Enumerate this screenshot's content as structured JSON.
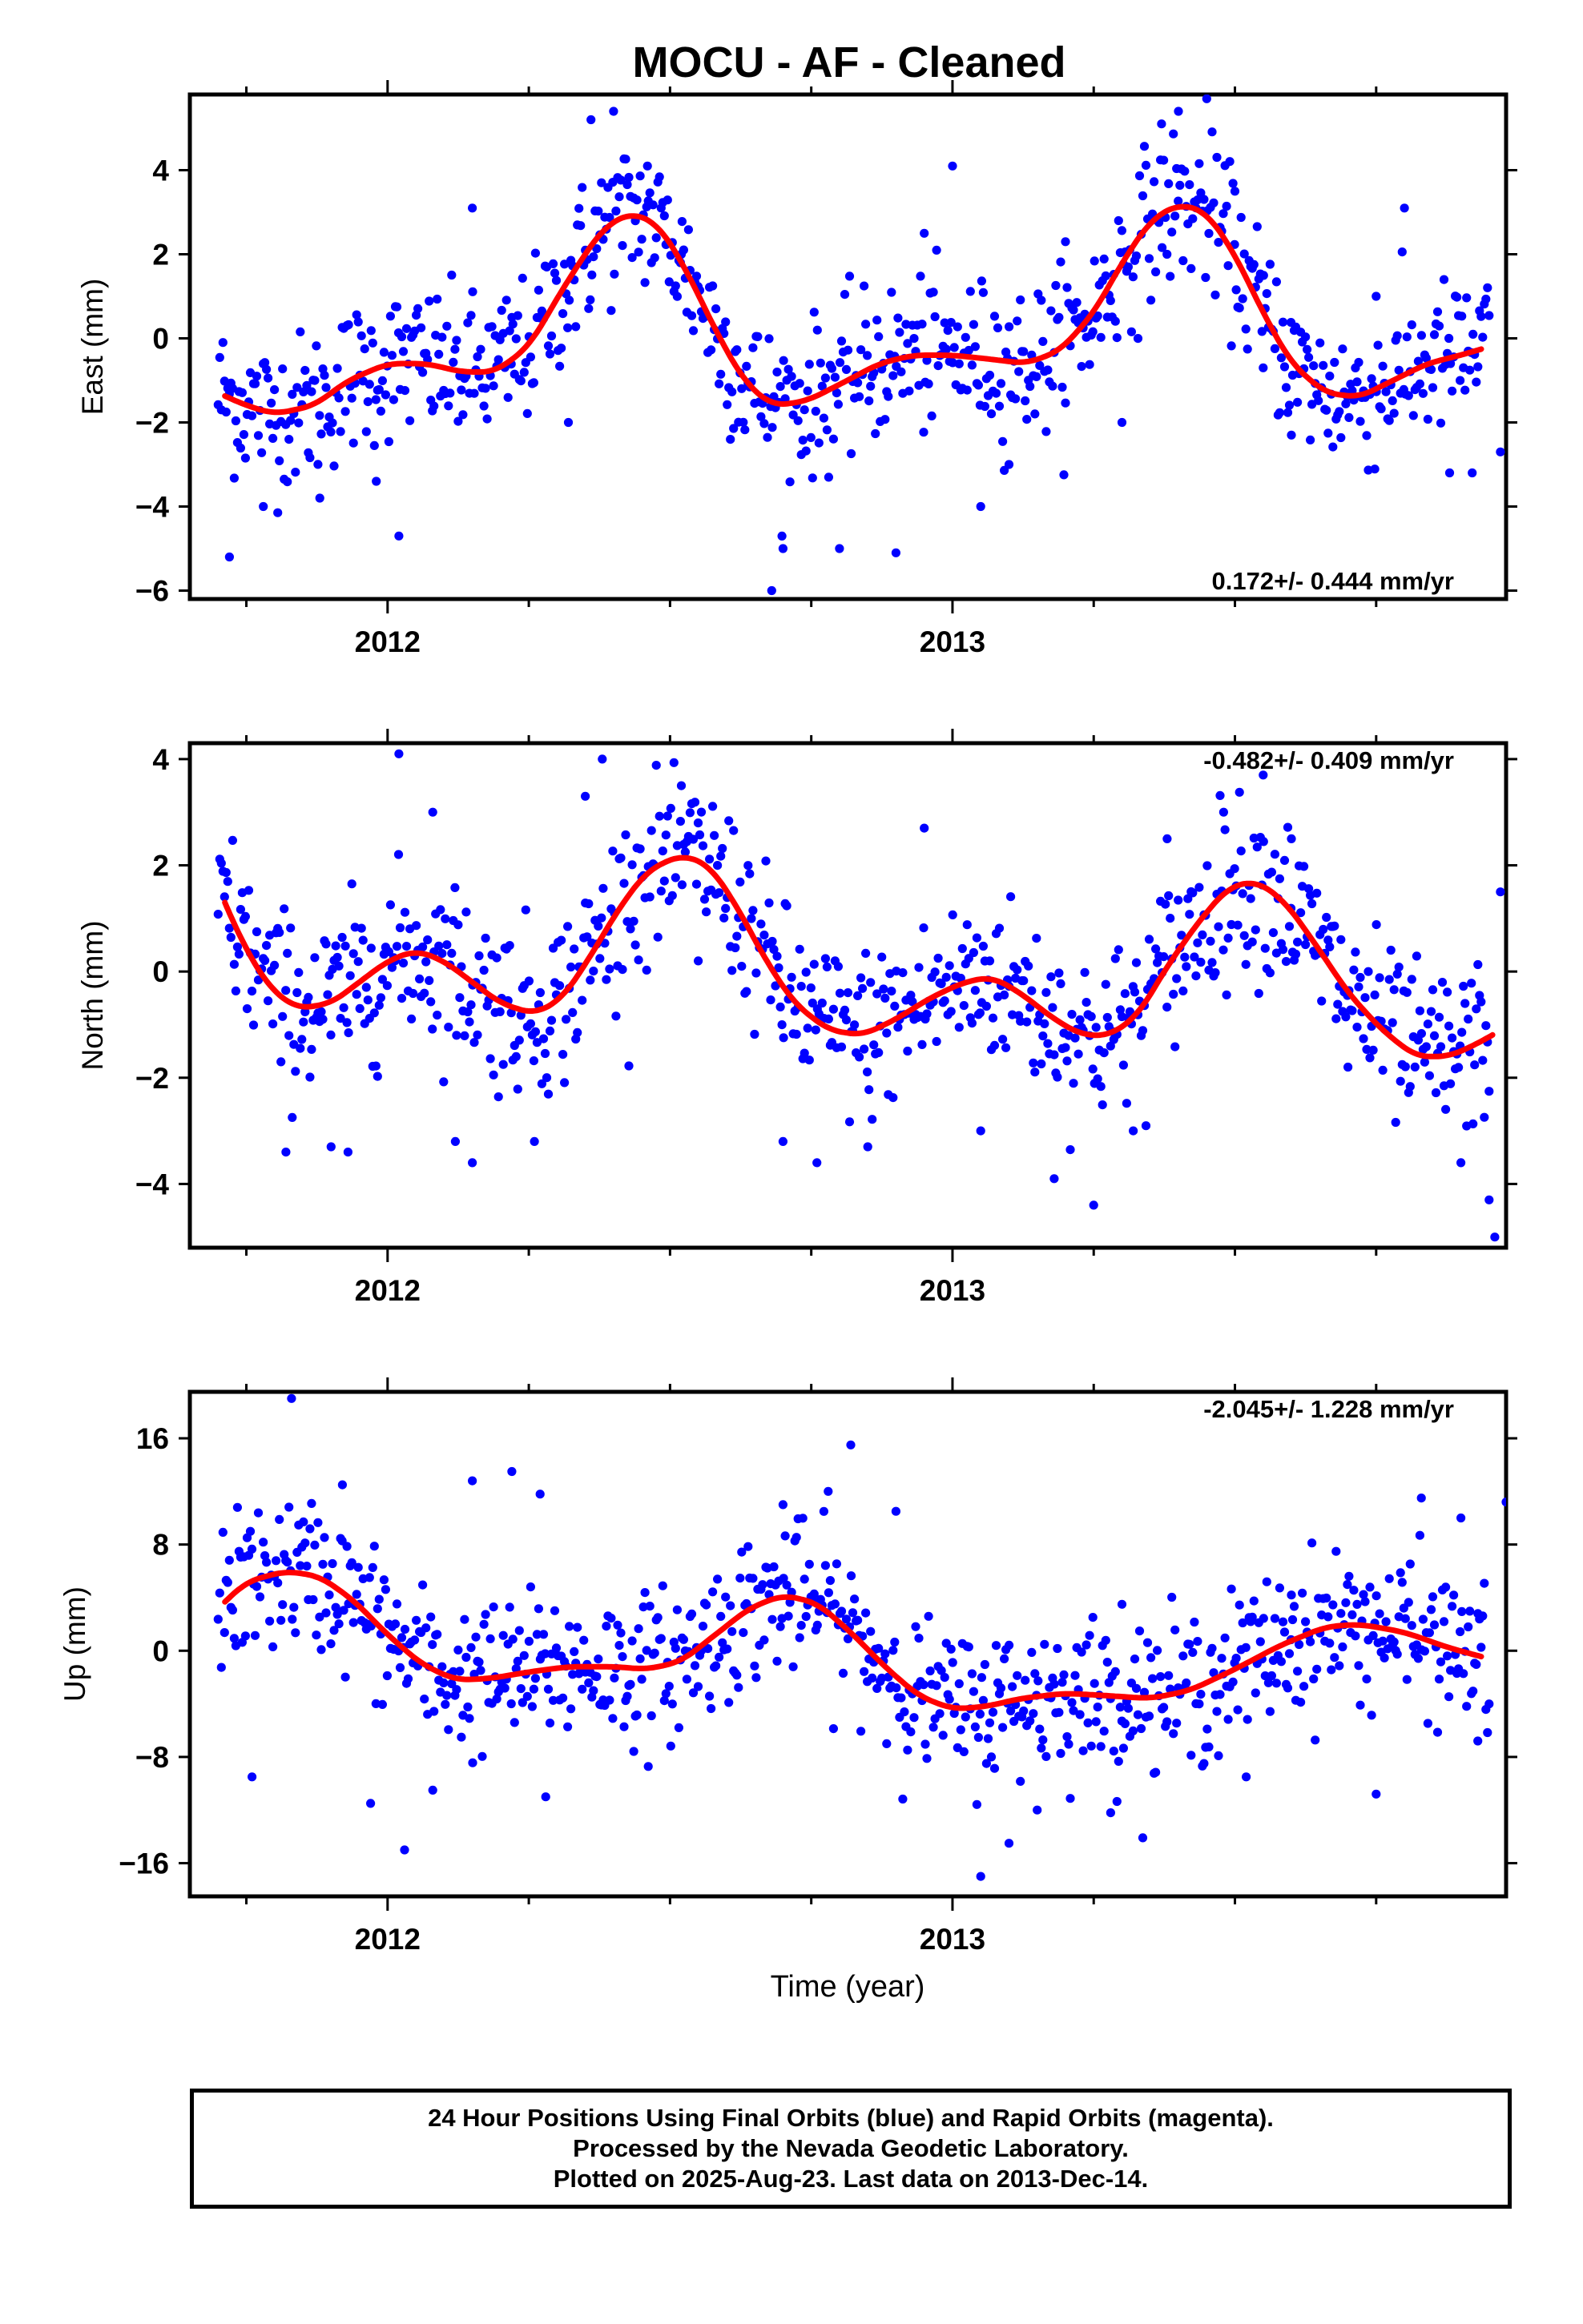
{
  "title": "MOCU  - AF - Cleaned",
  "xlabel": "Time (year)",
  "footer": {
    "line1": "24 Hour Positions Using Final Orbits (blue) and Rapid Orbits (magenta).",
    "line2": "Processed by the Nevada Geodetic Laboratory.",
    "line3": "Plotted on 2025-Aug-23. Last data on 2013-Dec-14."
  },
  "colors": {
    "points": "#0000ff",
    "fit": "#ff0000",
    "frame": "#000000"
  },
  "chart_data": [
    {
      "type": "scatter",
      "name": "East",
      "ylabel": "East (mm)",
      "rate_text": "0.172+/- 0.444 mm/yr",
      "rate_position": "bottom-right",
      "xlim": [
        2011.65,
        2013.98
      ],
      "ylim": [
        -6.2,
        5.8
      ],
      "yticks": [
        -6,
        -4,
        -2,
        0,
        2,
        4
      ],
      "ytick_labels": [
        "−6",
        "−4",
        "−2",
        "0",
        "2",
        "4"
      ],
      "xticks": [
        2012,
        2013
      ],
      "xtick_labels": [
        "2012",
        "2013"
      ],
      "xminor": [
        2011.75,
        2012.25,
        2012.5,
        2012.75,
        2013.25,
        2013.5,
        2013.75
      ],
      "fit": [
        [
          2011.7,
          -1.3
        ],
        [
          2011.75,
          -1.6
        ],
        [
          2011.8,
          -1.8
        ],
        [
          2011.87,
          -1.6
        ],
        [
          2011.93,
          -1.0
        ],
        [
          2012.0,
          -0.6
        ],
        [
          2012.07,
          -0.6
        ],
        [
          2012.13,
          -0.8
        ],
        [
          2012.19,
          -0.8
        ],
        [
          2012.25,
          -0.2
        ],
        [
          2012.32,
          1.4
        ],
        [
          2012.38,
          2.6
        ],
        [
          2012.43,
          3.0
        ],
        [
          2012.48,
          2.7
        ],
        [
          2012.53,
          1.6
        ],
        [
          2012.58,
          0.2
        ],
        [
          2012.63,
          -1.0
        ],
        [
          2012.68,
          -1.6
        ],
        [
          2012.74,
          -1.5
        ],
        [
          2012.8,
          -1.1
        ],
        [
          2012.87,
          -0.6
        ],
        [
          2012.93,
          -0.4
        ],
        [
          2013.0,
          -0.4
        ],
        [
          2013.07,
          -0.5
        ],
        [
          2013.13,
          -0.6
        ],
        [
          2013.19,
          -0.3
        ],
        [
          2013.25,
          0.6
        ],
        [
          2013.3,
          1.8
        ],
        [
          2013.35,
          2.8
        ],
        [
          2013.4,
          3.2
        ],
        [
          2013.45,
          3.0
        ],
        [
          2013.5,
          2.0
        ],
        [
          2013.55,
          0.6
        ],
        [
          2013.6,
          -0.6
        ],
        [
          2013.66,
          -1.3
        ],
        [
          2013.72,
          -1.4
        ],
        [
          2013.78,
          -1.0
        ],
        [
          2013.84,
          -0.6
        ],
        [
          2013.9,
          -0.4
        ],
        [
          2013.95,
          -0.2
        ]
      ],
      "seasonal": {
        "a1": 0.8,
        "p1": 2012.4,
        "a2": 0.5,
        "p2": 2012.31,
        "k": 0.9
      },
      "points": [
        [
          2011.72,
          -5.2
        ],
        [
          2011.78,
          -4.0
        ],
        [
          2011.88,
          -3.8
        ],
        [
          2011.98,
          -3.4
        ],
        [
          2012.02,
          -4.7
        ],
        [
          2012.15,
          3.1
        ],
        [
          2012.22,
          0.5
        ],
        [
          2012.32,
          -2.0
        ],
        [
          2012.36,
          5.2
        ],
        [
          2012.4,
          5.4
        ],
        [
          2012.46,
          4.1
        ],
        [
          2012.52,
          2.0
        ],
        [
          2012.68,
          -6.0
        ],
        [
          2012.7,
          -5.0
        ],
        [
          2012.8,
          -5.0
        ],
        [
          2012.9,
          -5.1
        ],
        [
          2012.95,
          2.5
        ],
        [
          2013.0,
          4.1
        ],
        [
          2013.05,
          -4.0
        ],
        [
          2013.1,
          -3.0
        ],
        [
          2013.2,
          2.3
        ],
        [
          2013.3,
          -2.0
        ],
        [
          2013.37,
          5.1
        ],
        [
          2013.4,
          5.4
        ],
        [
          2013.45,
          5.7
        ],
        [
          2013.5,
          3.5
        ],
        [
          2013.55,
          -0.7
        ],
        [
          2013.6,
          -2.3
        ],
        [
          2013.75,
          1.0
        ],
        [
          2013.8,
          3.1
        ],
        [
          2013.88,
          -3.2
        ],
        [
          2013.92,
          -3.2
        ],
        [
          2013.97,
          -2.7
        ]
      ]
    },
    {
      "type": "scatter",
      "name": "North",
      "ylabel": "North (mm)",
      "rate_text": "-0.482+/- 0.409 mm/yr",
      "rate_position": "top-right",
      "xlim": [
        2011.65,
        2013.98
      ],
      "ylim": [
        -5.2,
        4.3
      ],
      "yticks": [
        -4,
        -2,
        0,
        2,
        4
      ],
      "ytick_labels": [
        "−4",
        "−2",
        "0",
        "2",
        "4"
      ],
      "xticks": [
        2012,
        2013
      ],
      "xtick_labels": [
        "2012",
        "2013"
      ],
      "xminor": [
        2011.75,
        2012.25,
        2012.5,
        2012.75,
        2013.25,
        2013.5,
        2013.75
      ],
      "fit": [
        [
          2011.7,
          1.6
        ],
        [
          2011.74,
          0.6
        ],
        [
          2011.79,
          -0.3
        ],
        [
          2011.84,
          -0.7
        ],
        [
          2011.9,
          -0.6
        ],
        [
          2011.95,
          -0.2
        ],
        [
          2012.0,
          0.2
        ],
        [
          2012.05,
          0.4
        ],
        [
          2012.1,
          0.2
        ],
        [
          2012.15,
          -0.2
        ],
        [
          2012.2,
          -0.6
        ],
        [
          2012.26,
          -0.8
        ],
        [
          2012.31,
          -0.5
        ],
        [
          2012.36,
          0.3
        ],
        [
          2012.41,
          1.2
        ],
        [
          2012.46,
          1.9
        ],
        [
          2012.52,
          2.2
        ],
        [
          2012.57,
          2.0
        ],
        [
          2012.62,
          1.2
        ],
        [
          2012.67,
          0.2
        ],
        [
          2012.72,
          -0.6
        ],
        [
          2012.78,
          -1.1
        ],
        [
          2012.84,
          -1.2
        ],
        [
          2012.9,
          -0.9
        ],
        [
          2012.96,
          -0.5
        ],
        [
          2013.02,
          -0.2
        ],
        [
          2013.07,
          -0.1
        ],
        [
          2013.12,
          -0.4
        ],
        [
          2013.18,
          -0.9
        ],
        [
          2013.23,
          -1.2
        ],
        [
          2013.28,
          -1.2
        ],
        [
          2013.33,
          -0.8
        ],
        [
          2013.38,
          0.1
        ],
        [
          2013.44,
          1.0
        ],
        [
          2013.49,
          1.6
        ],
        [
          2013.54,
          1.7
        ],
        [
          2013.59,
          1.3
        ],
        [
          2013.65,
          0.4
        ],
        [
          2013.7,
          -0.4
        ],
        [
          2013.76,
          -1.1
        ],
        [
          2013.82,
          -1.6
        ],
        [
          2013.88,
          -1.6
        ],
        [
          2013.94,
          -1.3
        ],
        [
          2013.97,
          -1.1
        ]
      ],
      "seasonal": {
        "a1": 0.7,
        "p1": 2012.55,
        "a2": 0.6,
        "p2": 2012.3,
        "k": 0.8
      },
      "points": [
        [
          2011.82,
          -3.4
        ],
        [
          2011.9,
          -3.3
        ],
        [
          2011.93,
          -3.4
        ],
        [
          2012.02,
          4.1
        ],
        [
          2012.08,
          3.0
        ],
        [
          2012.12,
          -3.2
        ],
        [
          2012.15,
          -3.6
        ],
        [
          2012.26,
          -3.2
        ],
        [
          2012.35,
          3.3
        ],
        [
          2012.38,
          4.0
        ],
        [
          2012.52,
          3.5
        ],
        [
          2012.55,
          0.2
        ],
        [
          2012.7,
          -3.2
        ],
        [
          2012.76,
          -3.6
        ],
        [
          2012.85,
          -3.3
        ],
        [
          2012.95,
          2.7
        ],
        [
          2013.05,
          -3.0
        ],
        [
          2013.18,
          -3.9
        ],
        [
          2013.25,
          -4.4
        ],
        [
          2013.32,
          -3.0
        ],
        [
          2013.38,
          2.5
        ],
        [
          2013.48,
          3.0
        ],
        [
          2013.55,
          3.7
        ],
        [
          2013.6,
          2.5
        ],
        [
          2013.7,
          -1.8
        ],
        [
          2013.9,
          -3.6
        ],
        [
          2013.95,
          -4.3
        ],
        [
          2013.96,
          -5.0
        ],
        [
          2013.97,
          1.5
        ]
      ]
    },
    {
      "type": "scatter",
      "name": "Up",
      "ylabel": "Up (mm)",
      "rate_text": "-2.045+/- 1.228 mm/yr",
      "rate_position": "top-right",
      "xlim": [
        2011.65,
        2013.98
      ],
      "ylim": [
        -18.5,
        19.5
      ],
      "yticks": [
        -16,
        -8,
        0,
        8,
        16
      ],
      "ytick_labels": [
        "−16",
        "−8",
        "0",
        "8",
        "16"
      ],
      "xticks": [
        2012,
        2013
      ],
      "xtick_labels": [
        "2012",
        "2013"
      ],
      "xminor": [
        2011.75,
        2012.25,
        2012.5,
        2012.75,
        2013.25,
        2013.5,
        2013.75
      ],
      "fit": [
        [
          2011.7,
          3.2
        ],
        [
          2011.75,
          5.2
        ],
        [
          2011.82,
          6.0
        ],
        [
          2011.88,
          5.6
        ],
        [
          2011.94,
          3.8
        ],
        [
          2012.0,
          1.2
        ],
        [
          2012.06,
          -1.0
        ],
        [
          2012.12,
          -2.2
        ],
        [
          2012.18,
          -2.1
        ],
        [
          2012.25,
          -1.6
        ],
        [
          2012.32,
          -1.2
        ],
        [
          2012.4,
          -1.2
        ],
        [
          2012.46,
          -1.4
        ],
        [
          2012.52,
          -0.8
        ],
        [
          2012.58,
          1.2
        ],
        [
          2012.64,
          3.2
        ],
        [
          2012.7,
          4.2
        ],
        [
          2012.76,
          3.6
        ],
        [
          2012.82,
          1.4
        ],
        [
          2012.88,
          -1.2
        ],
        [
          2012.94,
          -3.4
        ],
        [
          2013.0,
          -4.4
        ],
        [
          2013.06,
          -4.2
        ],
        [
          2013.12,
          -3.6
        ],
        [
          2013.2,
          -3.2
        ],
        [
          2013.28,
          -3.4
        ],
        [
          2013.35,
          -3.6
        ],
        [
          2013.42,
          -3.0
        ],
        [
          2013.5,
          -1.4
        ],
        [
          2013.58,
          0.4
        ],
        [
          2013.66,
          1.8
        ],
        [
          2013.72,
          2.0
        ],
        [
          2013.8,
          1.4
        ],
        [
          2013.88,
          0.2
        ],
        [
          2013.95,
          -0.6
        ]
      ],
      "seasonal": {
        "a1": 2.5,
        "p1": 2012.75,
        "a2": 1.5,
        "p2": 2012.3,
        "k": 2.8
      },
      "points": [
        [
          2011.76,
          -9.5
        ],
        [
          2011.83,
          19.0
        ],
        [
          2011.92,
          12.5
        ],
        [
          2011.97,
          -11.5
        ],
        [
          2012.03,
          -15.0
        ],
        [
          2012.08,
          -10.5
        ],
        [
          2012.15,
          12.8
        ],
        [
          2012.22,
          13.5
        ],
        [
          2012.27,
          11.8
        ],
        [
          2012.28,
          -11.0
        ],
        [
          2012.7,
          11.0
        ],
        [
          2012.78,
          12.0
        ],
        [
          2012.82,
          15.5
        ],
        [
          2012.9,
          10.5
        ],
        [
          2013.05,
          -17.0
        ],
        [
          2013.1,
          -14.5
        ],
        [
          2013.15,
          -12.0
        ],
        [
          2013.28,
          -12.2
        ],
        [
          2013.3,
          3.5
        ],
        [
          2013.52,
          -9.5
        ],
        [
          2013.6,
          4.2
        ],
        [
          2013.75,
          -10.8
        ],
        [
          2013.83,
          11.5
        ],
        [
          2013.9,
          10.0
        ],
        [
          2013.93,
          -6.8
        ],
        [
          2013.98,
          11.2
        ]
      ]
    }
  ]
}
